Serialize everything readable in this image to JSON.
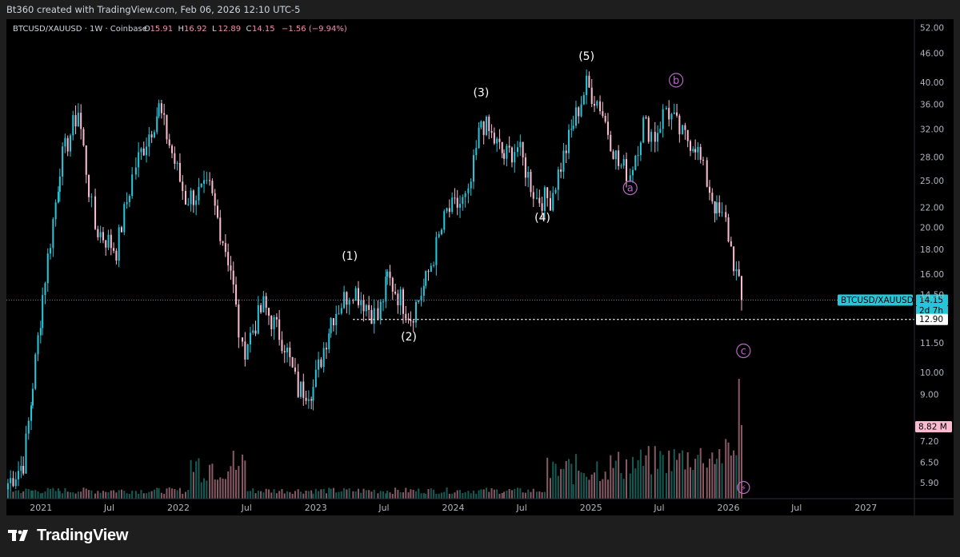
{
  "header": {
    "attribution": "Bt360 created with TradingView.com, Feb 06, 2026 12:10 UTC-5"
  },
  "footer": {
    "brand": "TradingView"
  },
  "chart_data": {
    "type": "candlestick",
    "legend": {
      "symbol": "BTCUSD/XAUUSD · 1W · Coinbase",
      "O": "15.91",
      "H": "16.92",
      "L": "12.89",
      "C": "14.15",
      "change": "−1.56 (−9.94%)"
    },
    "y_axis": {
      "scale": "log",
      "ticks": [
        "52.00",
        "46.00",
        "40.00",
        "36.00",
        "32.00",
        "28.00",
        "25.00",
        "22.00",
        "20.00",
        "18.00",
        "16.00",
        "14.50",
        "11.50",
        "10.00",
        "9.00",
        "7.20",
        "6.50",
        "5.90"
      ],
      "range": [
        5.6,
        53
      ]
    },
    "x_axis": {
      "ticks": [
        "2021",
        "Jul",
        "2022",
        "Jul",
        "2023",
        "Jul",
        "2024",
        "Jul",
        "2025",
        "Jul",
        "2026",
        "Jul",
        "2027"
      ],
      "range": [
        "2020-10-01",
        "2027-05-10"
      ]
    },
    "price_labels": {
      "symbol_tag": "BTCUSD/XAUUSD",
      "last_price": "14.15",
      "countdown": "2d 7h",
      "support": "12.90",
      "volume": "8.82 M"
    },
    "anchors": [
      {
        "t": "2020-10-05",
        "v": 5.9
      },
      {
        "t": "2020-11-15",
        "v": 6.5
      },
      {
        "t": "2020-12-10",
        "v": 9.5
      },
      {
        "t": "2021-01-05",
        "v": 14.5
      },
      {
        "t": "2021-02-20",
        "v": 27
      },
      {
        "t": "2021-04-10",
        "v": 35
      },
      {
        "t": "2021-05-25",
        "v": 20
      },
      {
        "t": "2021-07-20",
        "v": 18
      },
      {
        "t": "2021-09-10",
        "v": 27
      },
      {
        "t": "2021-11-10",
        "v": 35.5
      },
      {
        "t": "2022-01-20",
        "v": 23
      },
      {
        "t": "2022-03-25",
        "v": 24
      },
      {
        "t": "2022-05-20",
        "v": 16.5
      },
      {
        "t": "2022-06-20",
        "v": 11
      },
      {
        "t": "2022-08-15",
        "v": 13.8
      },
      {
        "t": "2022-10-10",
        "v": 11.5
      },
      {
        "t": "2022-11-15",
        "v": 9.2
      },
      {
        "t": "2022-12-25",
        "v": 9.3
      },
      {
        "t": "2023-02-10",
        "v": 13
      },
      {
        "t": "2023-04-10",
        "v": 15
      },
      {
        "t": "2023-06-15",
        "v": 13
      },
      {
        "t": "2023-07-10",
        "v": 15.8
      },
      {
        "t": "2023-09-10",
        "v": 13.1
      },
      {
        "t": "2023-10-20",
        "v": 15.5
      },
      {
        "t": "2023-12-15",
        "v": 21.5
      },
      {
        "t": "2024-02-10",
        "v": 23
      },
      {
        "t": "2024-03-15",
        "v": 33.5
      },
      {
        "t": "2024-05-15",
        "v": 28
      },
      {
        "t": "2024-06-20",
        "v": 29.5
      },
      {
        "t": "2024-08-10",
        "v": 23
      },
      {
        "t": "2024-09-15",
        "v": 23
      },
      {
        "t": "2024-11-15",
        "v": 33
      },
      {
        "t": "2024-12-20",
        "v": 39.5
      },
      {
        "t": "2025-01-25",
        "v": 36
      },
      {
        "t": "2025-03-15",
        "v": 27
      },
      {
        "t": "2025-04-15",
        "v": 26
      },
      {
        "t": "2025-05-20",
        "v": 33
      },
      {
        "t": "2025-06-20",
        "v": 31
      },
      {
        "t": "2025-07-20",
        "v": 35.5
      },
      {
        "t": "2025-09-01",
        "v": 31
      },
      {
        "t": "2025-10-05",
        "v": 30
      },
      {
        "t": "2025-11-05",
        "v": 25
      },
      {
        "t": "2025-12-01",
        "v": 21.5
      },
      {
        "t": "2025-12-25",
        "v": 20.5
      },
      {
        "t": "2026-01-15",
        "v": 17
      },
      {
        "t": "2026-02-05",
        "v": 14.15
      }
    ],
    "support_line": {
      "value": 12.9,
      "from": "2023-04-10"
    },
    "waves": [
      {
        "label": "(1)",
        "t": "2023-04-01",
        "v": 17.5,
        "style": "plain"
      },
      {
        "label": "(2)",
        "t": "2023-09-05",
        "v": 11.9,
        "style": "plain"
      },
      {
        "label": "(3)",
        "t": "2024-03-15",
        "v": 38.2,
        "style": "plain"
      },
      {
        "label": "(4)",
        "t": "2024-08-25",
        "v": 21.0,
        "style": "plain"
      },
      {
        "label": "(5)",
        "t": "2024-12-20",
        "v": 45.5,
        "style": "plain"
      },
      {
        "label": "a",
        "t": "2025-04-15",
        "v": 24.2,
        "style": "circle"
      },
      {
        "label": "b",
        "t": "2025-08-15",
        "v": 40.5,
        "style": "circle"
      },
      {
        "label": "c",
        "t": "2026-02-10",
        "v": 11.1,
        "style": "circle"
      }
    ],
    "colors": {
      "up": "#26c6da",
      "down": "#f8bbd0",
      "wave_circle": "#ba68c8",
      "support": "#ffffff",
      "vol_up": "#26a69a",
      "vol_down": "#f4a3b6"
    }
  }
}
